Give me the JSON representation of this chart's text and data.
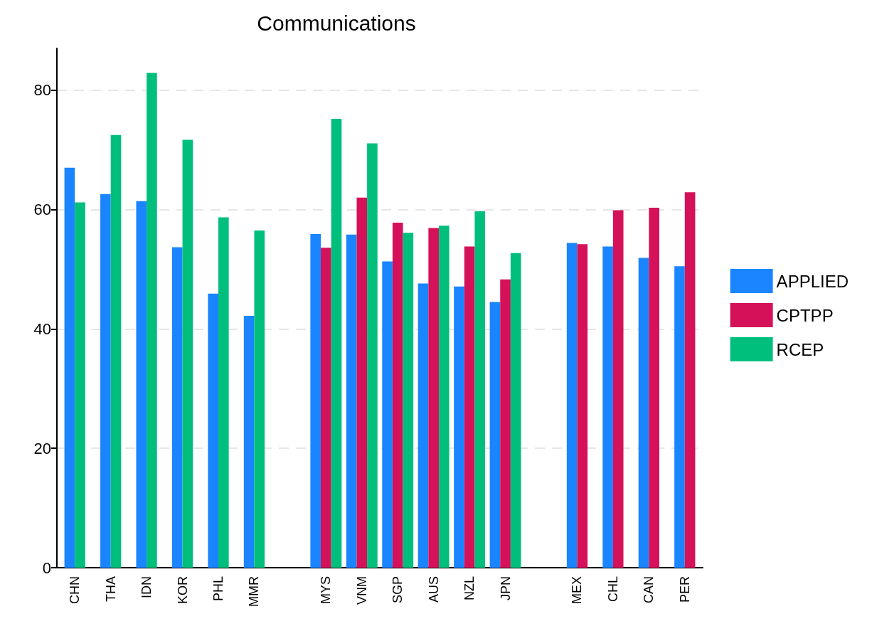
{
  "chart_data": {
    "type": "bar",
    "title": "Communications",
    "categories": [
      "CHN",
      "THA",
      "IDN",
      "KOR",
      "PHL",
      "MMR",
      null,
      "MYS",
      "VNM",
      "SGP",
      "AUS",
      "NZL",
      "JPN",
      null,
      "MEX",
      "CHL",
      "CAN",
      "PER"
    ],
    "series": [
      {
        "name": "APPLIED",
        "color": "#1a85ff",
        "values": [
          67.0,
          62.6,
          61.4,
          53.7,
          45.9,
          42.2,
          null,
          55.9,
          55.8,
          51.3,
          47.6,
          47.1,
          44.5,
          null,
          54.4,
          53.8,
          51.9,
          50.5
        ]
      },
      {
        "name": "CPTPP",
        "color": "#d41159",
        "values": [
          null,
          null,
          null,
          null,
          null,
          null,
          null,
          53.6,
          62.0,
          57.8,
          56.9,
          53.8,
          48.3,
          null,
          54.2,
          59.9,
          60.3,
          62.9
        ]
      },
      {
        "name": "RCEP",
        "color": "#00bf7d",
        "values": [
          61.2,
          72.5,
          82.9,
          71.7,
          58.7,
          56.5,
          null,
          75.2,
          71.1,
          56.1,
          57.3,
          59.7,
          52.7,
          null,
          null,
          null,
          null,
          null
        ]
      }
    ],
    "ylim": [
      0,
      87
    ],
    "yticks": [
      0,
      20,
      40,
      60,
      80
    ],
    "grid": "y",
    "legend": "right"
  }
}
